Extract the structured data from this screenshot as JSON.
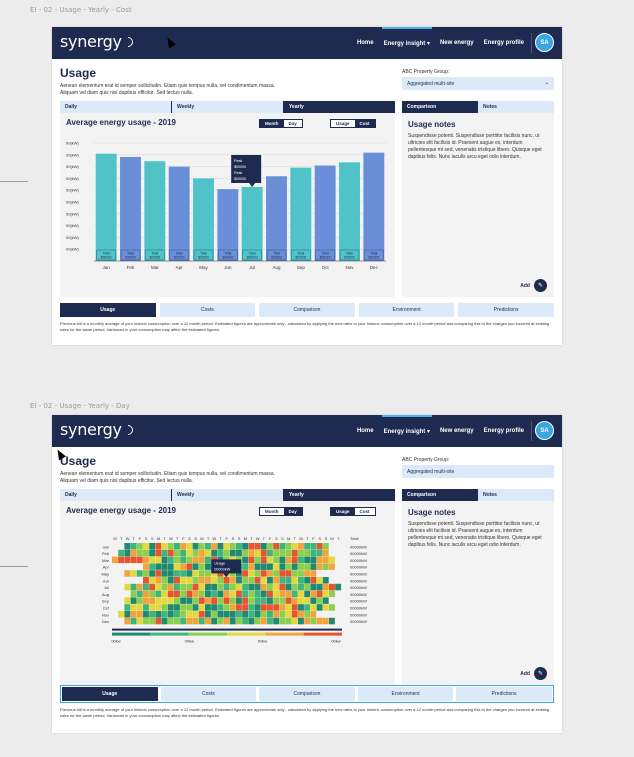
{
  "frames": [
    {
      "label": "EI - 02 - Usage - Yearly - Cost",
      "nav": {
        "logo": "synergy",
        "items": [
          "Home",
          "Energy insight ▾",
          "New energy",
          "Energy profile"
        ],
        "active_index": 1,
        "avatar": "SA"
      },
      "page_title": "Usage",
      "intro": "Aenean elementum erat id semper sollicitudin. Etiam quis tempus nulla, vel condimentum massa. Aliquam vel diam quis nisl dapibus efficitur. Sed lectus nulla.",
      "property_label": "ABC Property Group:",
      "property_value": "Aggregated multi-site",
      "period_tabs": [
        "Daily",
        "Weekly",
        "Yearly"
      ],
      "period_active": 2,
      "chart_title": "Average energy usage - 2019",
      "toggle1": [
        "Month",
        "Day"
      ],
      "toggle1_active": 0,
      "toggle2": [
        "Usage",
        "Cost"
      ],
      "toggle2_active": 1,
      "side_tabs": [
        "Comparison",
        "Notes"
      ],
      "side_active": 0,
      "notes_title": "Usage notes",
      "notes_body": "Suspendisse potenti. Suspendisse porttitor facilisis nunc, ut ultricies elit facilisis id. Praesent augue ex, interdum pellentesque mi sed, venenatis tristique libero. Quisque eget dapibus felis. Nunc iaculis arcu eget odio interdum.",
      "add_label": "Add",
      "bottom_tabs": [
        "Usage",
        "Costs",
        "Comparison",
        "Environment",
        "Predictions"
      ],
      "bottom_active": 0,
      "footnote": "Previous bill is a monthly average of your historic consumption over a 12 month period. Estimated figures are approximate only - calculated by applying the new rates to your historic consumption over a 12 month period and comparing this to the charges you incurred at existing rates for the same period. Variances in your consumption may affect the estimated figures.",
      "tooltip": [
        "Peak",
        "$00000",
        "Peak",
        "$00000"
      ],
      "bar_label": [
        "Total",
        "$00000"
      ]
    },
    {
      "label": "EI - 02 - Usage - Yearly - Day",
      "nav": {
        "logo": "synergy",
        "items": [
          "Home",
          "Energy insight ▾",
          "New energy",
          "Energy profile"
        ],
        "active_index": 1,
        "avatar": "SA"
      },
      "page_title": "Usage",
      "intro": "Aenean elementum erat id semper sollicitudin. Etiam quis tempus nulla, vel condimentum massa. Aliquam vel diam quis nisl dapibus efficitur. Sed lectus nulla.",
      "property_label": "ABC Property Group:",
      "property_value": "Aggregated multi-site",
      "period_tabs": [
        "Daily",
        "Weekly",
        "Yearly"
      ],
      "period_active": 2,
      "chart_title": "Average energy usage - 2019",
      "toggle1": [
        "Month",
        "Day"
      ],
      "toggle1_active": 1,
      "toggle2": [
        "Usage",
        "Cost"
      ],
      "toggle2_active": 0,
      "side_tabs": [
        "Comparison",
        "Notes"
      ],
      "side_active": 0,
      "notes_title": "Usage notes",
      "notes_body": "Suspendisse potenti. Suspendisse porttitor facilisis nunc, ut ultricies elit facilisis id. Praesent augue ex, interdum pellentesque mi sed, venenatis tristique libero. Quisque eget dapibus felis. Nunc iaculis arcu eget odio interdum.",
      "add_label": "Add",
      "bottom_tabs": [
        "Usage",
        "Costs",
        "Comparison",
        "Environment",
        "Predictions"
      ],
      "bottom_active": 0,
      "footnote": "Previous bill is a monthly average of your historic consumption over a 12 month period. Estimated figures are approximate only - calculated by applying the new rates to your historic consumption over a 12 month period and comparing this to the charges you incurred at existing rates for the same period. Variances in your consumption may affect the estimated figures.",
      "tooltip": [
        "Usage",
        "00000kW"
      ]
    }
  ],
  "chart_data": [
    {
      "type": "bar",
      "title": "Average energy usage - 2019",
      "categories": [
        "Jan",
        "Feb",
        "Mar",
        "Apr",
        "May",
        "Jun",
        "Jul",
        "Aug",
        "Sep",
        "Oct",
        "Nov",
        "Dec"
      ],
      "values": [
        100,
        97,
        93,
        88,
        77,
        67,
        69,
        79,
        87,
        89,
        92,
        101
      ],
      "ylim": [
        0,
        110
      ],
      "ytick_labels": [
        "00(kW)",
        "00(kW)",
        "00(kW)",
        "00(kW)",
        "00(kW)",
        "00(kW)",
        "00(kW)",
        "00(kW)",
        "00(kW)",
        "00(kW)"
      ],
      "colors": [
        "#4fc3c8",
        "#6a8fd8"
      ],
      "highlight_index": 6,
      "grid": true
    },
    {
      "type": "heatmap",
      "title": "Average energy usage - 2019",
      "rows": [
        "Jan",
        "Feb",
        "Mar",
        "Apr",
        "May",
        "Jun",
        "Jul",
        "Aug",
        "Sep",
        "Oct",
        "Nov",
        "Dec"
      ],
      "columns": [
        "M",
        "T",
        "W",
        "T",
        "F",
        "S",
        "S",
        "M",
        "T",
        "W",
        "T",
        "F",
        "S",
        "S",
        "M",
        "T",
        "W",
        "T",
        "F",
        "S",
        "S",
        "M",
        "T",
        "W",
        "T",
        "F",
        "S",
        "S",
        "M",
        "T",
        "W",
        "T",
        "F",
        "S",
        "S",
        "M",
        "T"
      ],
      "total_header": "Total",
      "row_totals": [
        "00000kW",
        "00000kW",
        "00000kW",
        "00000kW",
        "00000kW",
        "00000kW",
        "00000kW",
        "00000kW",
        "00000kW",
        "00000kW",
        "00000kW",
        "00000kW"
      ],
      "legend_ticks": [
        "00kw",
        "00kw",
        "00kw",
        "00kw"
      ],
      "palette": [
        "#1f8a70",
        "#3fb57a",
        "#8ccf4d",
        "#e3d93a",
        "#f2a33a",
        "#e5562f"
      ]
    }
  ]
}
